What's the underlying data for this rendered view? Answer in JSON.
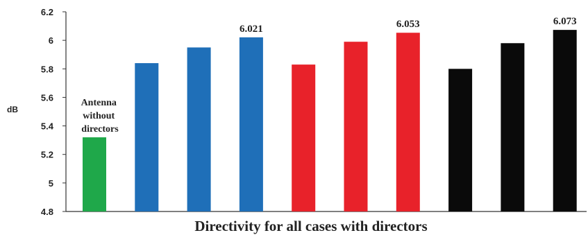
{
  "chart_data": {
    "type": "bar",
    "xlabel": "Directivity  for all cases with directors",
    "ylabel": "dB",
    "ylim": [
      4.8,
      6.2
    ],
    "yticks": [
      "4.8",
      "5",
      "5.2",
      "5.4",
      "5.6",
      "5.8",
      "6",
      "6.2"
    ],
    "grid": false,
    "values": [
      5.32,
      5.84,
      5.95,
      6.021,
      5.83,
      5.99,
      6.053,
      5.8,
      5.98,
      6.073
    ],
    "colors": [
      "#1fa84a",
      "#1f6fb8",
      "#1f6fb8",
      "#1f6fb8",
      "#e8222a",
      "#e8222a",
      "#e8222a",
      "#0a0a0a",
      "#0a0a0a",
      "#0a0a0a"
    ],
    "data_labels": [
      "",
      "",
      "",
      "6.021",
      "",
      "",
      "6.053",
      "",
      "",
      "6.073"
    ],
    "annotation": [
      "Antenna",
      "without",
      "directors"
    ]
  }
}
